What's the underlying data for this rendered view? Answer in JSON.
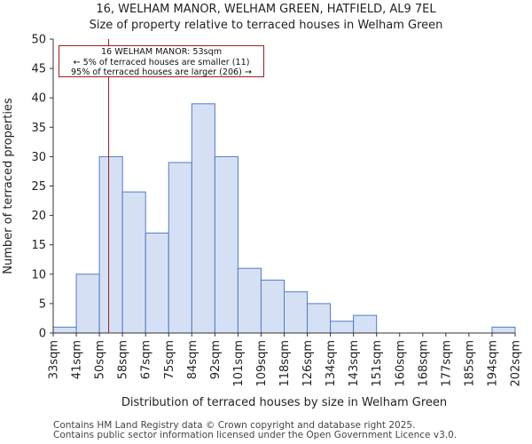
{
  "title": "16, WELHAM MANOR, WELHAM GREEN, HATFIELD, AL9 7EL",
  "subtitle": "Size of property relative to terraced houses in Welham Green",
  "footer": {
    "line1": "Contains HM Land Registry data © Crown copyright and database right 2025.",
    "line2": "Contains public sector information licensed under the Open Government Licence v3.0."
  },
  "annotation": {
    "line1": "16 WELHAM MANOR: 53sqm",
    "line2": "← 5% of terraced houses are smaller (11)",
    "line3": "95% of terraced houses are larger (206) →"
  },
  "colors": {
    "bar_fill": "#d6e0f5",
    "bar_stroke": "#4f7cc4",
    "marker": "#a31d1d",
    "axis": "#333333"
  },
  "chart_data": {
    "type": "bar",
    "title": "16, WELHAM MANOR, WELHAM GREEN, HATFIELD, AL9 7EL",
    "subtitle": "Size of property relative to terraced houses in Welham Green",
    "xlabel": "Distribution of terraced houses by size in Welham Green",
    "ylabel": "Number of terraced properties",
    "bin_edges": [
      "33sqm",
      "41sqm",
      "50sqm",
      "58sqm",
      "67sqm",
      "75sqm",
      "84sqm",
      "92sqm",
      "101sqm",
      "109sqm",
      "118sqm",
      "126sqm",
      "134sqm",
      "143sqm",
      "151sqm",
      "160sqm",
      "168sqm",
      "177sqm",
      "185sqm",
      "194sqm",
      "202sqm"
    ],
    "values": [
      1,
      10,
      30,
      24,
      17,
      29,
      39,
      30,
      11,
      9,
      7,
      5,
      2,
      3,
      0,
      0,
      0,
      0,
      0,
      1
    ],
    "ylim": [
      0,
      50
    ],
    "yticks": [
      0,
      5,
      10,
      15,
      20,
      25,
      30,
      35,
      40,
      45,
      50
    ],
    "marker": {
      "value_sqm": 53,
      "bin_position": 2.4,
      "label": "16 WELHAM MANOR: 53sqm"
    },
    "grid": false
  }
}
